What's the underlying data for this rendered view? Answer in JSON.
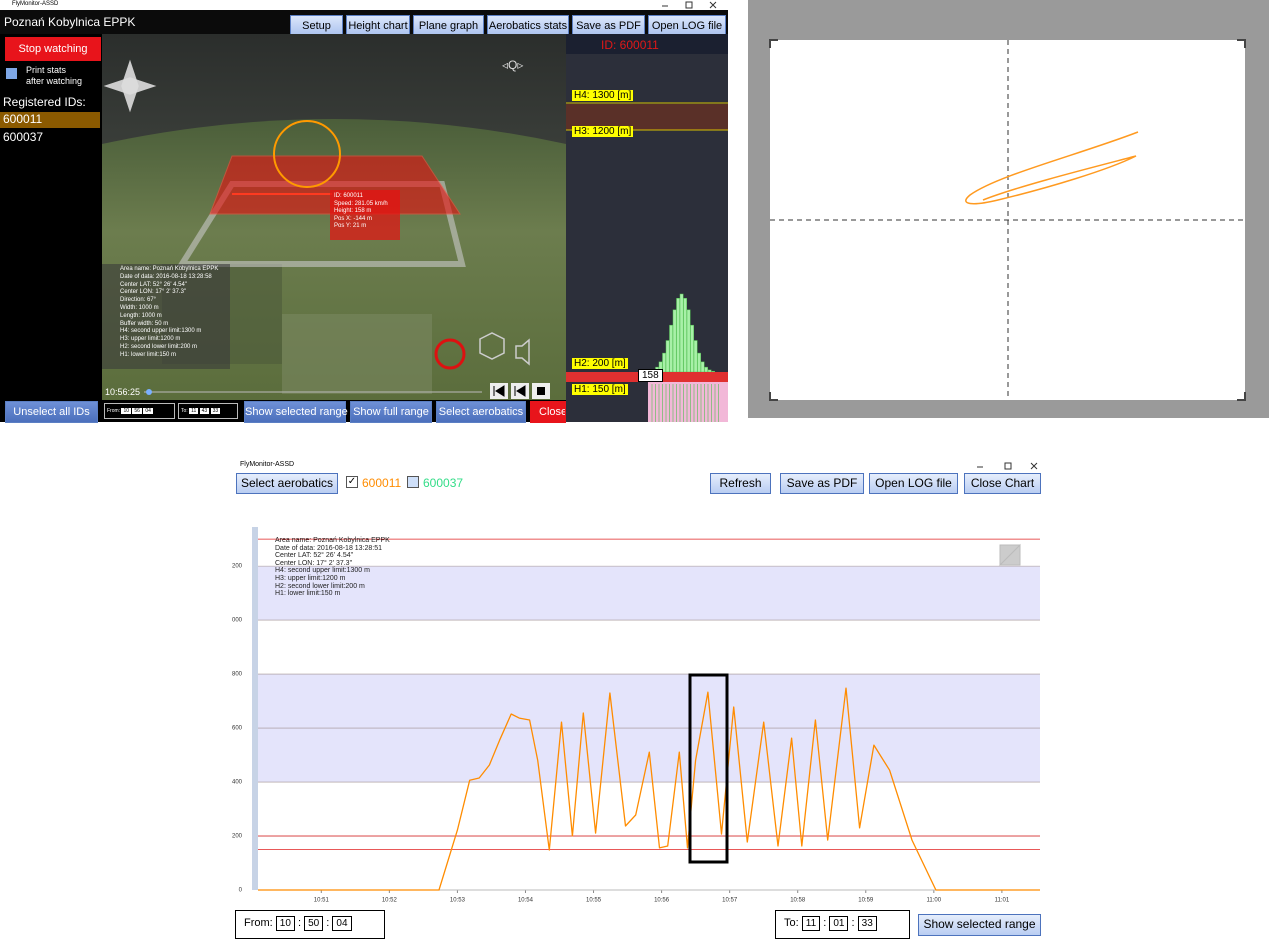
{
  "top_window": {
    "title_bar": "FlyMonitor-ASSD",
    "area_name": "Poznań Kobylnica EPPK",
    "toolbar": [
      "Setup",
      "Height chart",
      "Plane graph",
      "Aerobatics stats",
      "Save as PDF",
      "Open LOG file"
    ],
    "stop_button": "Stop watching",
    "print_stats": [
      "Print stats",
      "after watching"
    ],
    "registered_label": "Registered IDs:",
    "ids": [
      "600011",
      "600037"
    ],
    "plane_popup": [
      "ID: 600011",
      "Speed: 281.05 km/h",
      "Height: 158 m",
      "Pos X: -144 m",
      "Pos Y: 21 m"
    ],
    "area_info": [
      "Area name: Poznań Kobylnica EPPK",
      "Date of data: 2016-08-18 13:28:58",
      "Center LAT: 52° 26' 4.54\"",
      "Center LON: 17° 2' 37.3\"",
      "Direction: 67°",
      "Width: 1000 m",
      "Length: 1000 m",
      "Buffer width: 50 m",
      "H4: second upper limit:1300 m",
      "H3: upper limit:1200 m",
      "H2: second lower limit:200 m",
      "H1: lower limit:150 m"
    ],
    "time": "10:56:25",
    "unselect_button": "Unselect all IDs",
    "from_label": "From:",
    "from": [
      "10",
      "56",
      "04"
    ],
    "to_label": "To:",
    "to": [
      "11",
      "43",
      "33"
    ],
    "bottom_buttons": [
      "Show selected range",
      "Show full range",
      "Select aerobatics",
      "Close I"
    ],
    "altitude_panel": {
      "id": "ID: 600011",
      "limits": [
        "H4: 1300 [m]",
        "H3: 1200 [m]",
        "H2: 200 [m]",
        "H1: 150 [m]"
      ],
      "current": "158"
    }
  },
  "bottom_window": {
    "title_bar": "FlyMonitor-ASSD",
    "select_button": "Select aerobatics",
    "buttons": [
      "Refresh",
      "Save as PDF",
      "Open LOG file",
      "Close Chart"
    ],
    "chart_info": [
      "Area name: Poznań Kobylnica EPPK",
      "Date of data:  2016-08-18 13:28:51",
      "Center LAT: 52° 26' 4.54\"",
      "Center LON: 17° 2' 37.3\"",
      "H4: second upper limit:1300 m",
      "H3: upper limit:1200 m",
      "H2: second lower limit:200 m",
      "H1: lower limit:150 m"
    ],
    "from_label": "From:",
    "from": [
      "10",
      "50",
      "04"
    ],
    "to_label": "To:",
    "to": [
      "11",
      "01",
      "33"
    ],
    "separator": ":",
    "range_button": "Show selected range",
    "chart_data": {
      "type": "line",
      "xlim": [
        50.07,
        61.56
      ],
      "xticks": [
        {
          "value": 51,
          "label": "10:51"
        },
        {
          "value": 52,
          "label": "10:52"
        },
        {
          "value": 53,
          "label": "10:53"
        },
        {
          "value": 54,
          "label": "10:54"
        },
        {
          "value": 55,
          "label": "10:55"
        },
        {
          "value": 56,
          "label": "10:56"
        },
        {
          "value": 57,
          "label": "10:57"
        },
        {
          "value": 58,
          "label": "10:58"
        },
        {
          "value": 59,
          "label": "10:59"
        },
        {
          "value": 60,
          "label": "11:00"
        },
        {
          "value": 61,
          "label": "11:01"
        }
      ],
      "ylim": [
        0,
        1345
      ],
      "yticks": [
        0,
        200,
        400,
        600,
        800,
        {
          "value": 1000,
          "label": "000"
        },
        {
          "value": 1200,
          "label": "200"
        }
      ],
      "limit_lines": [
        1300,
        200,
        150
      ],
      "bands": [
        [
          1000,
          1200
        ],
        [
          400,
          800
        ]
      ],
      "series": [
        {
          "name": "600011",
          "color": "#ff8c00",
          "x": [
            50.07,
            52.07,
            52.73,
            53.0,
            53.18,
            53.32,
            53.47,
            53.62,
            53.79,
            53.91,
            54.06,
            54.18,
            54.35,
            54.53,
            54.69,
            54.85,
            55.03,
            55.24,
            55.47,
            55.62,
            55.82,
            55.97,
            56.09,
            56.26,
            56.38,
            56.5,
            56.68,
            56.88,
            57.06,
            57.26,
            57.5,
            57.71,
            57.91,
            58.06,
            58.26,
            58.44,
            58.71,
            58.91,
            59.12,
            59.35,
            59.68,
            60.03,
            61.56
          ],
          "values": [
            0,
            0,
            0,
            222,
            407,
            415,
            463,
            555,
            652,
            637,
            630,
            481,
            148,
            622,
            200,
            656,
            211,
            730,
            237,
            278,
            511,
            156,
            163,
            511,
            156,
            481,
            733,
            207,
            678,
            178,
            622,
            163,
            563,
            163,
            630,
            185,
            748,
            230,
            537,
            444,
            185,
            0,
            0
          ]
        },
        {
          "name": "600037",
          "color": "#33dd88",
          "x": [],
          "values": []
        }
      ]
    }
  }
}
